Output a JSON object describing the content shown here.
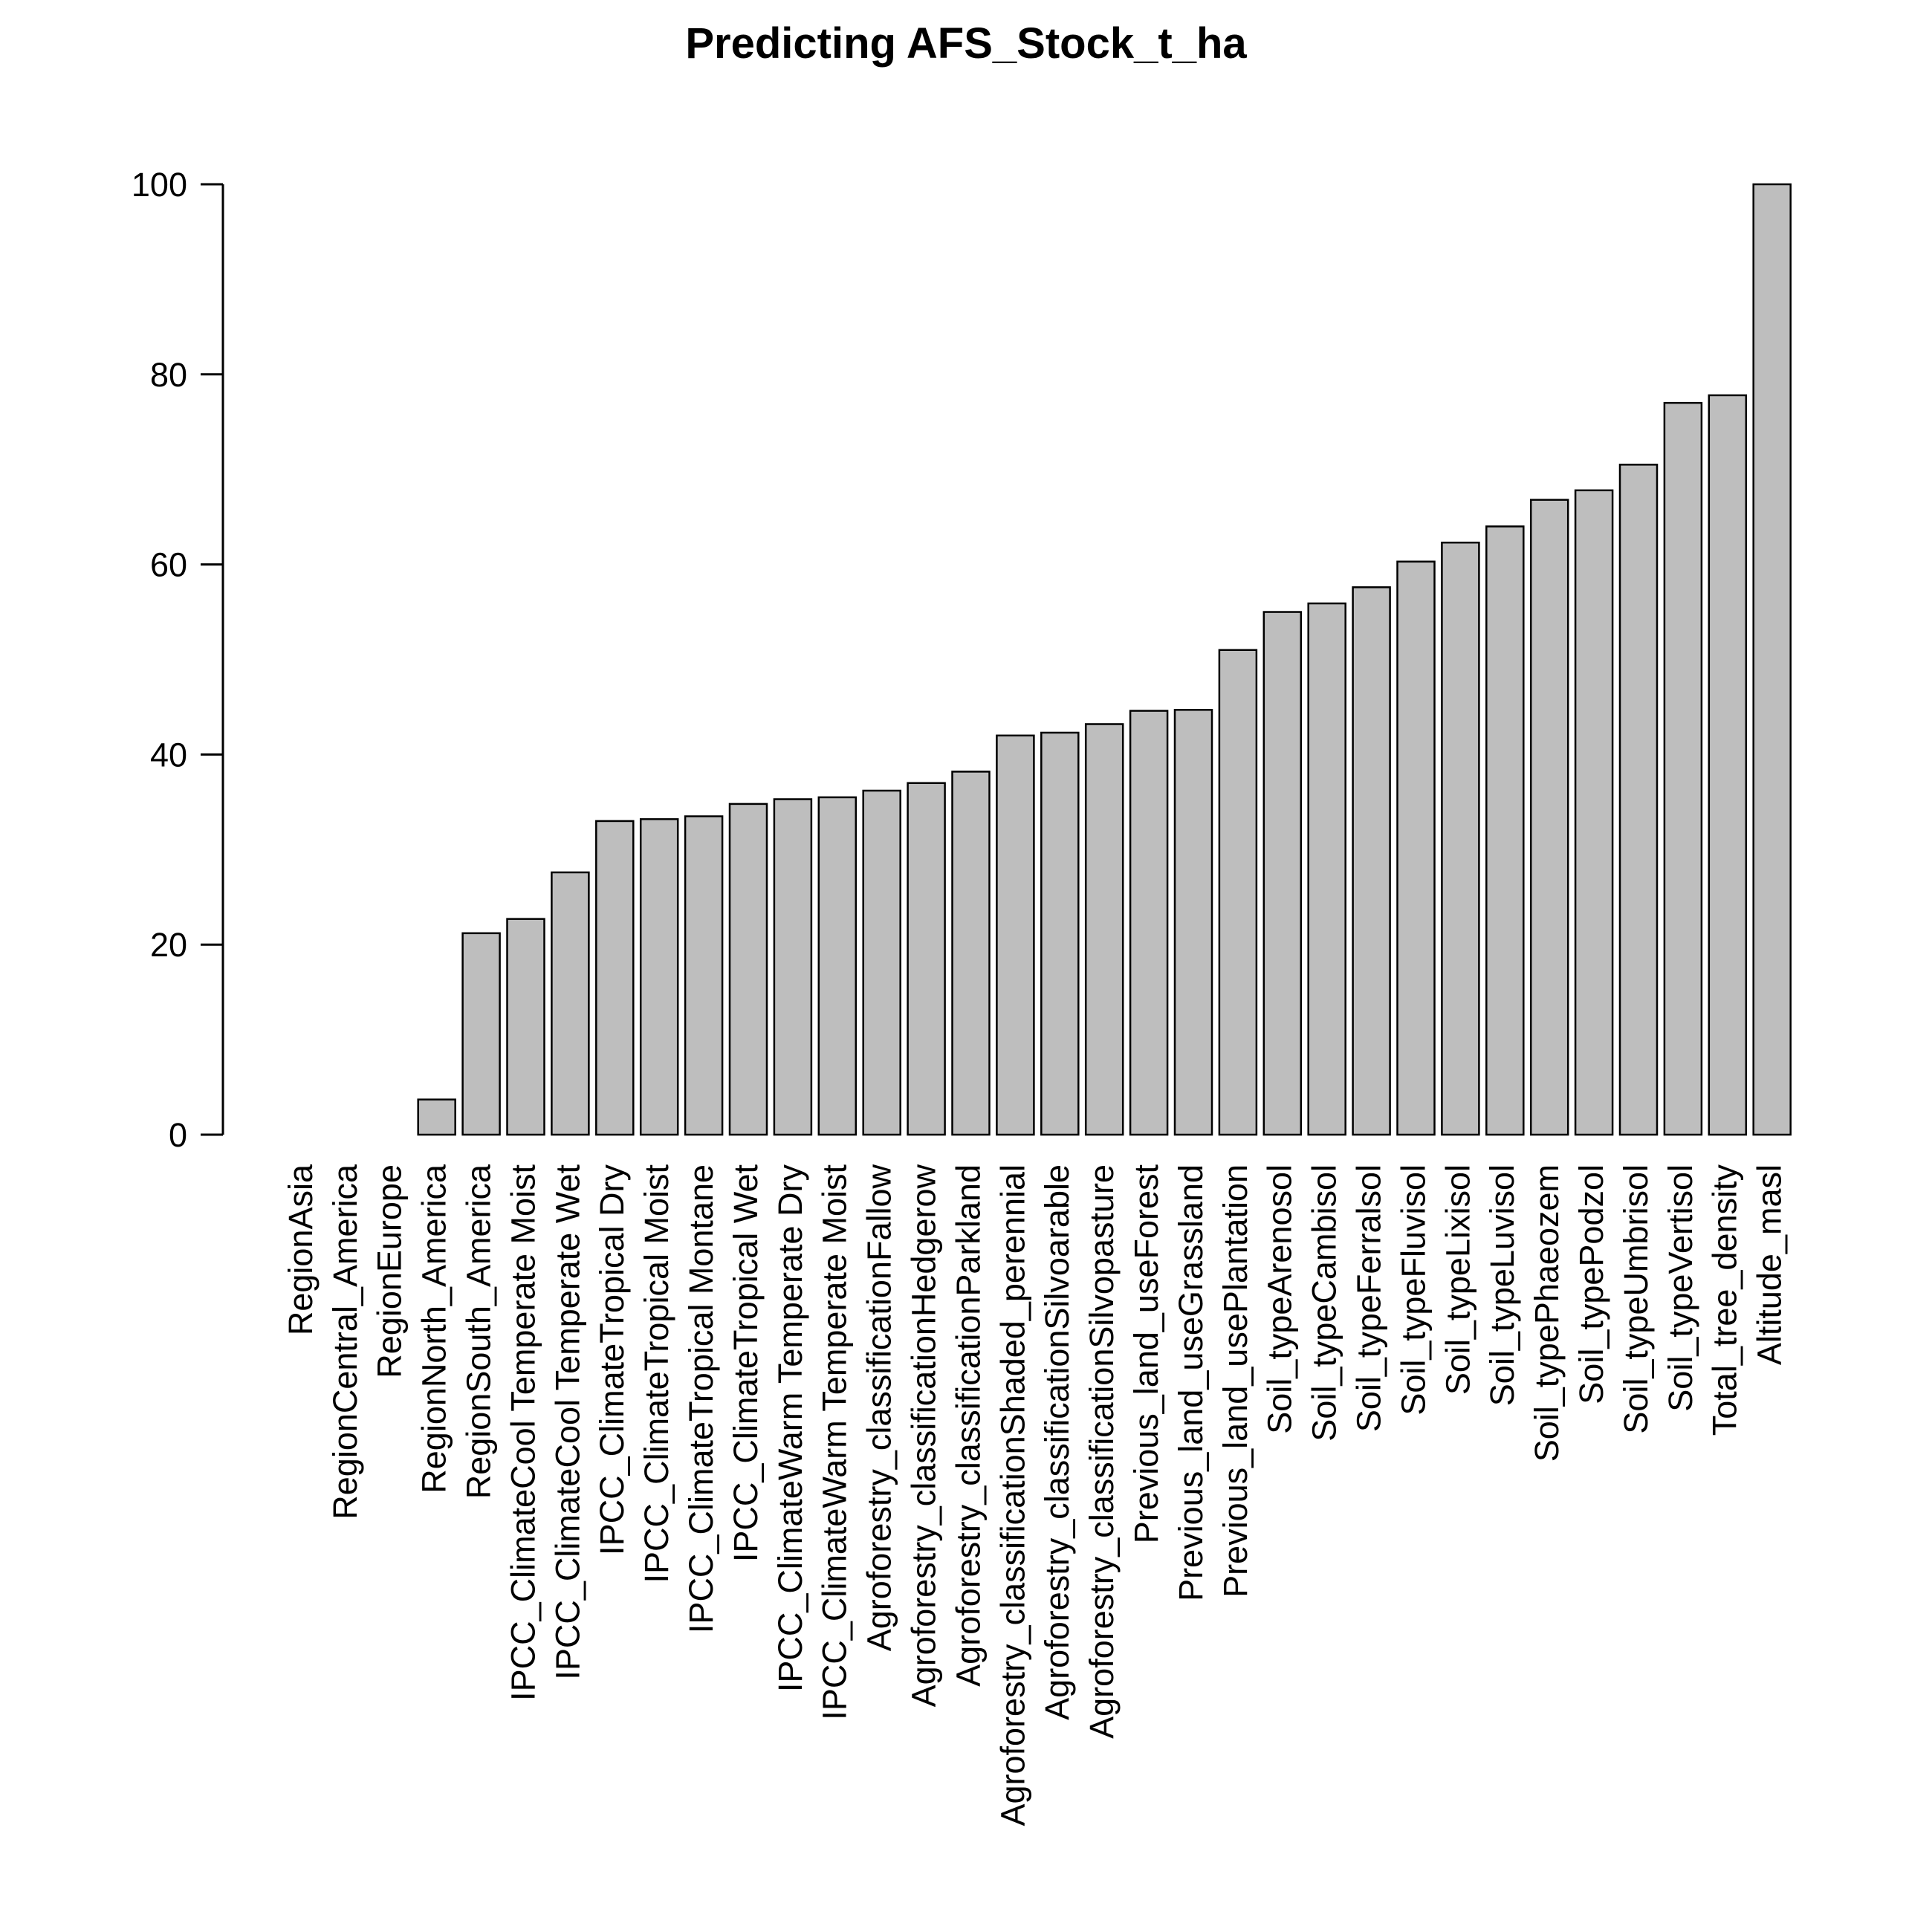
{
  "chart_data": {
    "type": "bar",
    "title": "Predicting AFS_Stock_t_ha",
    "xlabel": "",
    "ylabel": "",
    "ylim": [
      0,
      100
    ],
    "yticks": [
      0,
      20,
      40,
      60,
      80,
      100
    ],
    "grid": false,
    "bar_color": "#bebebe",
    "edge_color": "#000000",
    "categories": [
      "RegionAsia",
      "RegionCentral_America",
      "RegionEurope",
      "RegionNorth_America",
      "RegionSouth_America",
      "IPCC_ClimateCool Temperate Moist",
      "IPCC_ClimateCool Temperate Wet",
      "IPCC_ClimateTropical Dry",
      "IPCC_ClimateTropical Moist",
      "IPCC_ClimateTropical Montane",
      "IPCC_ClimateTropical Wet",
      "IPCC_ClimateWarm Temperate Dry",
      "IPCC_ClimateWarm Temperate Moist",
      "Agroforestry_classificationFallow",
      "Agroforestry_classificationHedgerow",
      "Agroforestry_classificationParkland",
      "Agroforestry_classificationShaded_perennial",
      "Agroforestry_classificationSilvoarable",
      "Agroforestry_classificationSilvopasture",
      "Previous_land_useForest",
      "Previous_land_useGrassland",
      "Previous_land_usePlantation",
      "Soil_typeArenosol",
      "Soil_typeCambisol",
      "Soil_typeFerralsol",
      "Soil_typeFluvisol",
      "Soil_typeLixisol",
      "Soil_typeLuvisol",
      "Soil_typePhaeozem",
      "Soil_typePodzol",
      "Soil_typeUmbrisol",
      "Soil_typeVertisol",
      "Total_tree_density",
      "Altitude_masl"
    ],
    "values": [
      0,
      0,
      0,
      3.7,
      21.2,
      22.7,
      27.6,
      33.0,
      33.2,
      33.5,
      34.8,
      35.3,
      35.5,
      36.2,
      37.0,
      38.2,
      42.0,
      42.3,
      43.2,
      44.6,
      44.7,
      51.0,
      55.0,
      55.9,
      57.6,
      60.3,
      62.3,
      64.0,
      66.8,
      67.8,
      70.5,
      77.0,
      77.8,
      100
    ]
  }
}
